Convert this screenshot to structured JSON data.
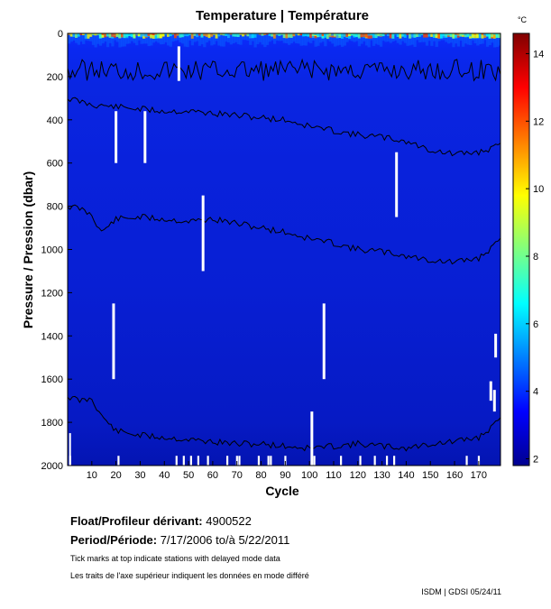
{
  "chart_data": {
    "type": "heatmap",
    "title": "Temperature | Température",
    "xlabel": "Cycle",
    "ylabel": "Pressure / Pression (dbar)",
    "colorbar_unit": "°C",
    "xlim": [
      0,
      179
    ],
    "ylim": [
      2000,
      0
    ],
    "x_ticks": [
      10,
      20,
      30,
      40,
      50,
      60,
      70,
      80,
      90,
      100,
      110,
      120,
      130,
      140,
      150,
      160,
      170
    ],
    "y_ticks": [
      0,
      200,
      400,
      600,
      800,
      1000,
      1200,
      1400,
      1600,
      1800,
      2000
    ],
    "colorbar_range": [
      1.8,
      14.6
    ],
    "colorbar_ticks": [
      2,
      4,
      6,
      8,
      10,
      12,
      14
    ],
    "colorscale": "jet",
    "contours": [
      {
        "level": 5,
        "depth_range_dbar": [
          120,
          220
        ],
        "description": "upper contour"
      },
      {
        "level": 4,
        "x": [
          0,
          10,
          20,
          30,
          40,
          50,
          60,
          70,
          80,
          90,
          100,
          110,
          120,
          130,
          140,
          150,
          160,
          170,
          179
        ],
        "depth": [
          300,
          330,
          340,
          350,
          360,
          360,
          370,
          380,
          390,
          400,
          430,
          450,
          470,
          480,
          500,
          540,
          560,
          550,
          520
        ]
      },
      {
        "level": 3,
        "x": [
          0,
          5,
          10,
          14,
          20,
          30,
          40,
          50,
          60,
          70,
          80,
          90,
          100,
          110,
          120,
          130,
          140,
          150,
          160,
          170,
          179
        ],
        "depth": [
          800,
          810,
          840,
          920,
          860,
          850,
          860,
          870,
          860,
          880,
          900,
          920,
          950,
          970,
          1000,
          1010,
          1030,
          1050,
          1060,
          1040,
          960
        ]
      },
      {
        "level": 2.5,
        "x": [
          0,
          5,
          10,
          14,
          20,
          30,
          40,
          50,
          60,
          70,
          80,
          90,
          100,
          110,
          120,
          130,
          140,
          150,
          160,
          170,
          179
        ],
        "depth": [
          1680,
          1700,
          1690,
          1770,
          1840,
          1860,
          1870,
          1880,
          1890,
          1900,
          1900,
          1910,
          1920,
          1910,
          1900,
          1910,
          1920,
          1900,
          1890,
          1870,
          1790
        ]
      }
    ],
    "missing_data_gaps": [
      {
        "cycle": 20,
        "from": 360,
        "to": 600
      },
      {
        "cycle": 32,
        "from": 360,
        "to": 600
      },
      {
        "cycle": 46,
        "from": 60,
        "to": 220
      },
      {
        "cycle": 56,
        "from": 750,
        "to": 1100
      },
      {
        "cycle": 136,
        "from": 550,
        "to": 850
      },
      {
        "cycle": 19,
        "from": 1250,
        "to": 1600
      },
      {
        "cycle": 106,
        "from": 1250,
        "to": 1600
      },
      {
        "cycle": 177,
        "from": 1390,
        "to": 1500
      },
      {
        "cycle": 175,
        "from": 1610,
        "to": 1700
      },
      {
        "cycle": 176.5,
        "from": 1650,
        "to": 1750
      },
      {
        "cycle": 101,
        "from": 1750,
        "to": 2000
      }
    ]
  },
  "info": {
    "float_label": "Float/Profileur dérivant:",
    "float_id": "4900522",
    "period_label": "Period/Période:",
    "period_value": "7/17/2006  to/à  5/22/2011",
    "note_en": "Tick marks at top indicate stations with delayed mode data",
    "note_fr": "Les traits de l'axe supérieur indiquent les données en mode différé",
    "credit": "ISDM | GDSI  05/24/11"
  }
}
